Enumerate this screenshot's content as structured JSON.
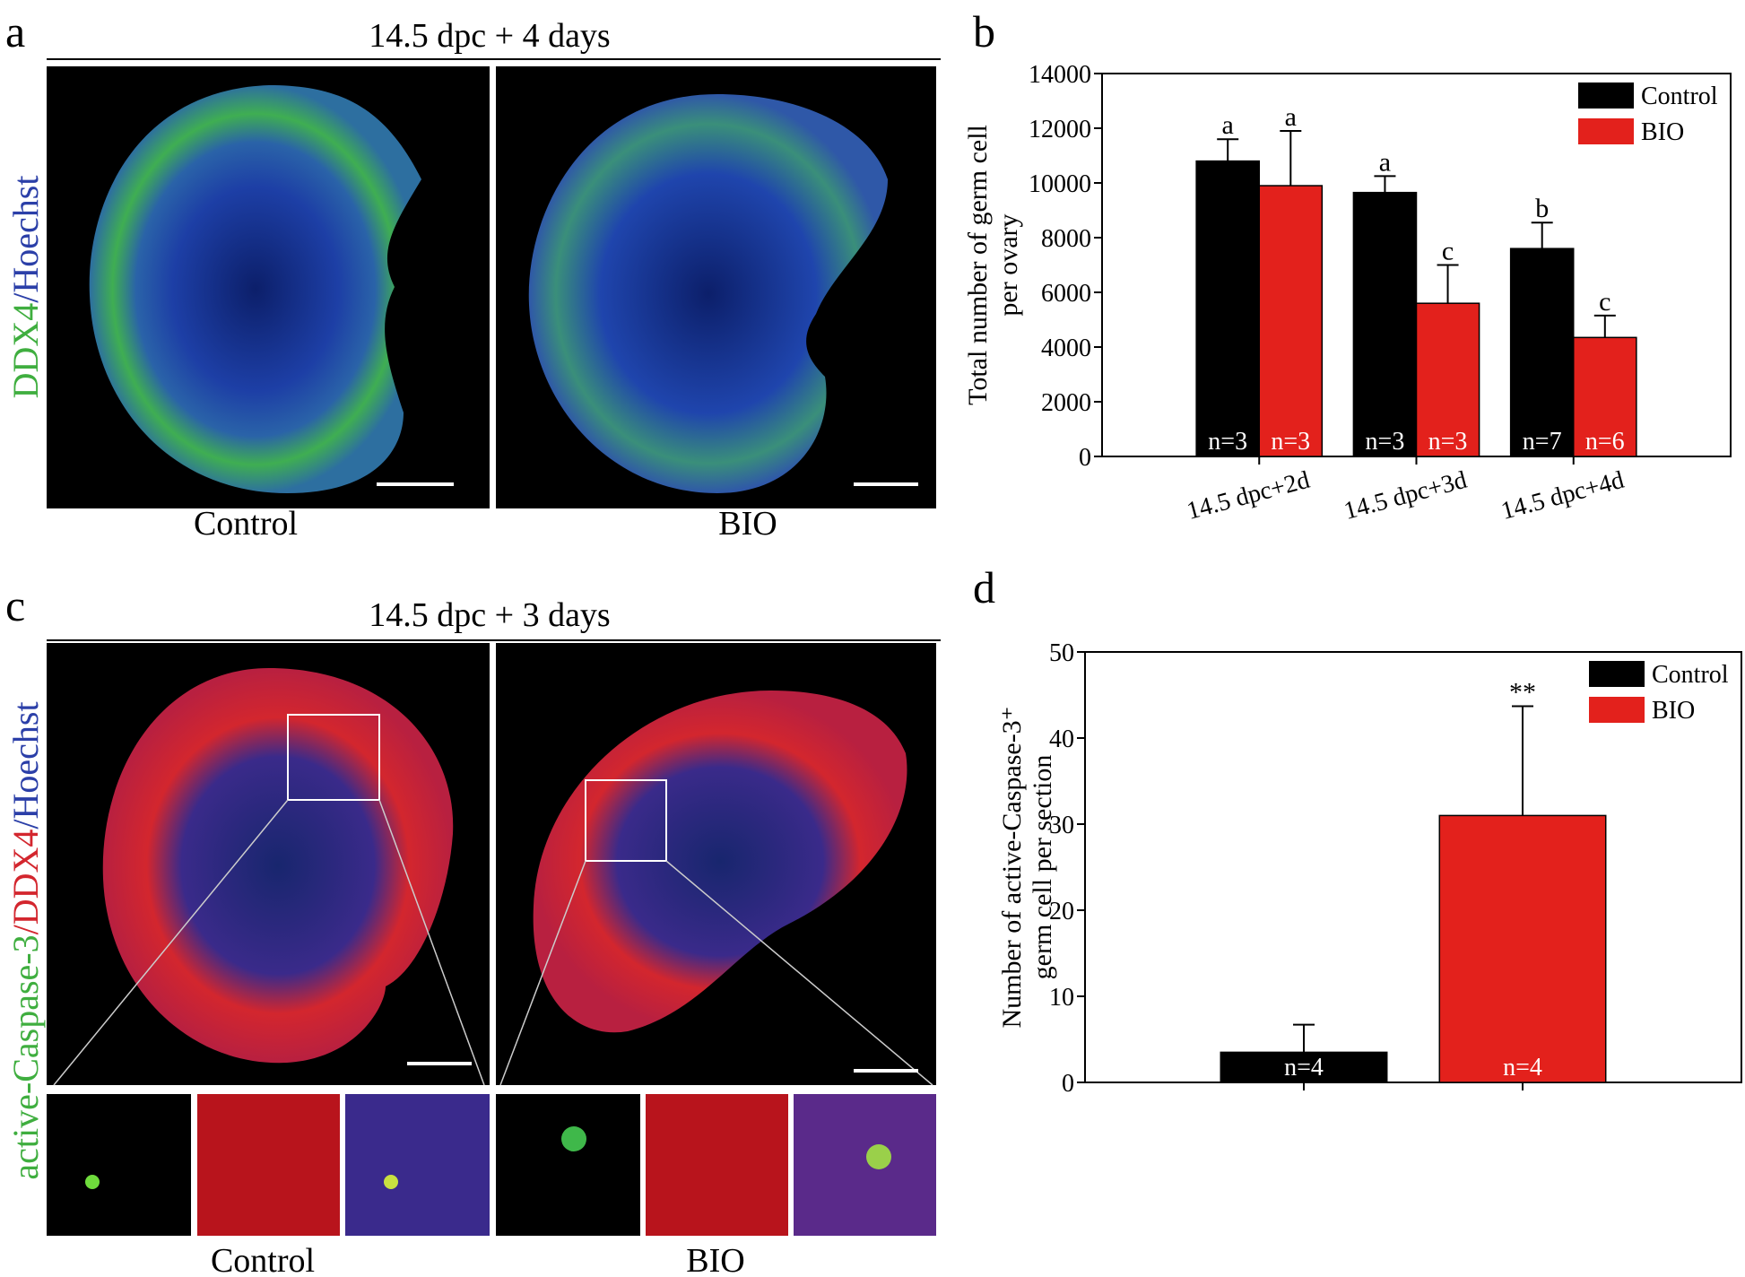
{
  "figure": {
    "panel_a": {
      "letter": "a",
      "title": "14.5 dpc + 4 days",
      "stain": [
        "DDX4",
        "/Hoechst"
      ],
      "captions": [
        "Control",
        "BIO"
      ]
    },
    "panel_b": {
      "letter": "b"
    },
    "panel_c": {
      "letter": "c",
      "title": "14.5 dpc + 3 days",
      "stain": [
        "active-Caspase-3",
        "/DDX4",
        "/Hoechst"
      ],
      "captions": [
        "Control",
        "BIO"
      ]
    },
    "panel_d": {
      "letter": "d"
    }
  },
  "chart_data": [
    {
      "type": "bar",
      "y_label": [
        "Total number of germ cell",
        "per ovary"
      ],
      "categories": [
        "14.5 dpc+2d",
        "14.5 dpc+3d",
        "14.5 dpc+4d"
      ],
      "series": [
        {
          "name": "Control",
          "color": "#000000",
          "values": [
            10800,
            9650,
            7600
          ],
          "errors": [
            800,
            600,
            950
          ],
          "significance": [
            "a",
            "a",
            "b"
          ],
          "sample_size": [
            "n=3",
            "n=3",
            "n=7"
          ]
        },
        {
          "name": "BIO",
          "color": "#e3211c",
          "values": [
            9900,
            5600,
            4350
          ],
          "errors": [
            2000,
            1400,
            800
          ],
          "significance": [
            "a",
            "c",
            "c"
          ],
          "sample_size": [
            "n=3",
            "n=3",
            "n=6"
          ]
        }
      ],
      "ylim": [
        0,
        14000
      ],
      "yticks": [
        0,
        2000,
        4000,
        6000,
        8000,
        10000,
        12000,
        14000
      ],
      "legend": "upper right"
    },
    {
      "type": "bar",
      "y_label": [
        "Number of active-Caspase-3⁺",
        "germ cell per section"
      ],
      "categories": [
        null,
        null
      ],
      "series": [
        {
          "name": "Control",
          "color": "#000000",
          "values": [
            3.5,
            null
          ],
          "errors": [
            3.2,
            null
          ],
          "significance": [
            null,
            null
          ],
          "sample_size": [
            "n=4",
            null
          ]
        },
        {
          "name": "BIO",
          "color": "#e3211c",
          "values": [
            null,
            31
          ],
          "errors": [
            null,
            12.7
          ],
          "significance": [
            null,
            "**"
          ],
          "sample_size": [
            null,
            "n=4"
          ]
        }
      ],
      "ylim": [
        0,
        50
      ],
      "yticks": [
        0,
        10,
        20,
        30,
        40,
        50
      ],
      "legend": "upper right"
    }
  ]
}
